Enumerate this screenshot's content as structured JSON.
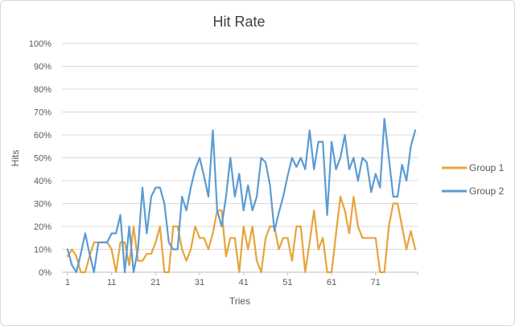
{
  "chart_data": {
    "type": "line",
    "title": "Hit Rate",
    "xlabel": "Tries",
    "ylabel": "Hits",
    "x_count": 80,
    "xticks": [
      1,
      11,
      21,
      31,
      41,
      51,
      61,
      71
    ],
    "ytick_labels": [
      "0%",
      "10%",
      "20%",
      "30%",
      "40%",
      "50%",
      "60%",
      "70%",
      "80%",
      "90%",
      "100%"
    ],
    "ylim": [
      0,
      100
    ],
    "grid": true,
    "legend_position": "right",
    "series": [
      {
        "name": "Group 1",
        "color": "#E8A33C",
        "values": [
          7,
          10,
          7,
          0,
          0,
          7,
          13,
          13,
          13,
          13,
          10,
          0,
          13,
          13,
          3,
          20,
          5,
          5,
          8,
          8,
          13,
          20,
          0,
          0,
          20,
          20,
          10,
          5,
          10,
          20,
          15,
          15,
          10,
          17,
          27,
          27,
          7,
          15,
          15,
          0,
          20,
          10,
          20,
          5,
          0,
          15,
          20,
          20,
          10,
          15,
          15,
          5,
          20,
          20,
          0,
          13,
          27,
          10,
          15,
          0,
          0,
          17,
          33,
          27,
          17,
          33,
          20,
          15,
          15,
          15,
          15,
          0,
          0,
          20,
          30,
          30,
          20,
          10,
          18,
          10
        ]
      },
      {
        "name": "Group 2",
        "color": "#5B9BD5",
        "values": [
          10,
          3,
          0,
          8,
          17,
          8,
          0,
          13,
          13,
          13,
          17,
          17,
          25,
          0,
          20,
          0,
          10,
          37,
          17,
          33,
          37,
          37,
          30,
          13,
          10,
          10,
          33,
          27,
          37,
          45,
          50,
          42,
          33,
          62,
          27,
          20,
          33,
          50,
          33,
          43,
          27,
          38,
          27,
          33,
          50,
          48,
          38,
          18,
          26,
          33,
          42,
          50,
          46,
          50,
          45,
          62,
          45,
          57,
          57,
          25,
          57,
          45,
          50,
          60,
          45,
          50,
          40,
          50,
          48,
          35,
          43,
          37,
          67,
          50,
          33,
          33,
          47,
          40,
          55,
          62
        ]
      }
    ],
    "colors": {
      "title_text": "#404040",
      "tick_text": "#595959",
      "grid_line": "#D9D9D9",
      "axis_line": "#BFBFBF"
    }
  }
}
